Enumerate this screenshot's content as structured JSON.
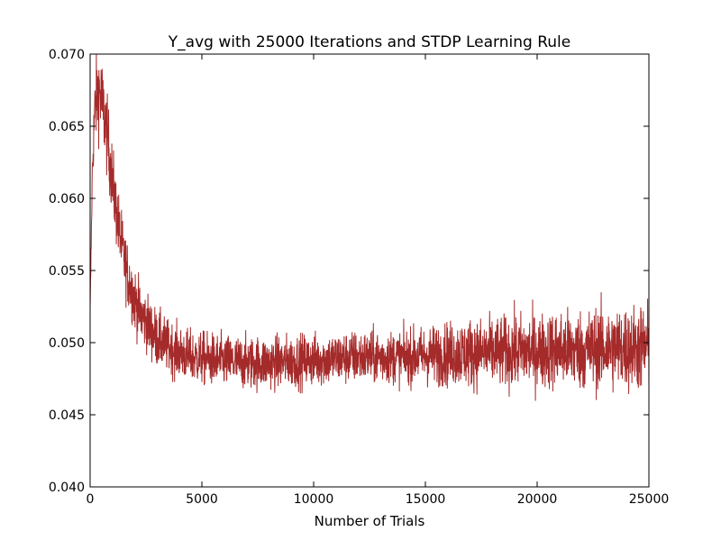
{
  "chart_data": {
    "type": "line",
    "title": "Y_avg with 25000 Iterations and STDP Learning Rule",
    "xlabel": "Number of Trials",
    "ylabel": "",
    "xlim": [
      0,
      25000
    ],
    "ylim": [
      0.04,
      0.07
    ],
    "grid": false,
    "legend": "none",
    "x_ticks": [
      "0",
      "5000",
      "10000",
      "15000",
      "20000",
      "25000"
    ],
    "y_ticks": [
      "0.040",
      "0.045",
      "0.050",
      "0.055",
      "0.060",
      "0.065",
      "0.070"
    ],
    "series": [
      {
        "color": "#a52a2a",
        "x": [
          0,
          100,
          200,
          300,
          400,
          500,
          600,
          700,
          800,
          900,
          1000,
          1200,
          1400,
          1600,
          1800,
          2000,
          2250,
          2500,
          2750,
          3000,
          3500,
          4000,
          4500,
          5000,
          6000,
          7000,
          8000,
          9000,
          10000,
          11000,
          12000,
          13000,
          14000,
          15000,
          16000,
          17000,
          18000,
          19000,
          20000,
          21000,
          22000,
          23000,
          24000,
          25000
        ],
        "y": [
          0.052,
          0.062,
          0.066,
          0.067,
          0.0675,
          0.0668,
          0.066,
          0.065,
          0.0638,
          0.0625,
          0.0612,
          0.0588,
          0.0568,
          0.0552,
          0.054,
          0.053,
          0.052,
          0.0515,
          0.0508,
          0.0503,
          0.0497,
          0.0493,
          0.049,
          0.0489,
          0.0487,
          0.0486,
          0.0486,
          0.0487,
          0.0488,
          0.0489,
          0.049,
          0.049,
          0.049,
          0.0491,
          0.0492,
          0.0493,
          0.0493,
          0.0494,
          0.0494,
          0.0495,
          0.0495,
          0.0496,
          0.0496,
          0.0497
        ],
        "noise_amplitude": [
          0.0005,
          0.0008,
          0.0014,
          0.0016,
          0.0017,
          0.0017,
          0.0016,
          0.0015,
          0.0015,
          0.0014,
          0.0014,
          0.0013,
          0.0013,
          0.0012,
          0.0012,
          0.0012,
          0.0011,
          0.0011,
          0.0011,
          0.0011,
          0.001,
          0.001,
          0.001,
          0.001,
          0.001,
          0.001,
          0.001,
          0.001,
          0.001,
          0.001,
          0.001,
          0.001,
          0.001,
          0.0011,
          0.0012,
          0.0013,
          0.0013,
          0.0014,
          0.0014,
          0.0015,
          0.0015,
          0.0016,
          0.0016,
          0.0017
        ]
      }
    ]
  }
}
